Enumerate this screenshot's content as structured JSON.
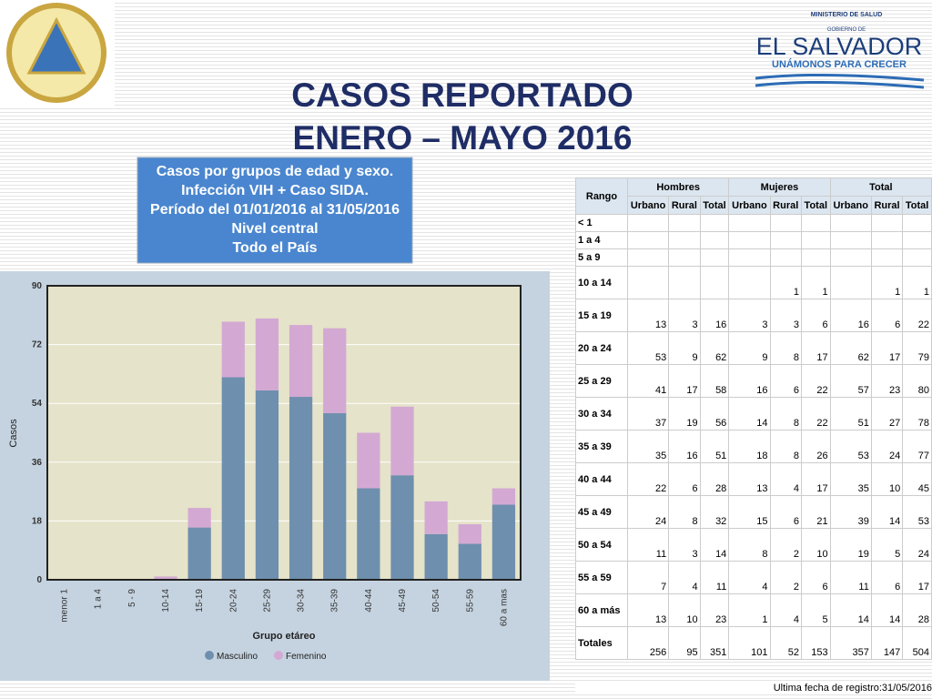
{
  "header": {
    "title_lines": [
      "CASOS REPORTADO",
      "ENERO – MAYO 2016"
    ],
    "logo_lines": [
      "MINISTERIO DE SALUD",
      "GOBIERNO DE",
      "EL SALVADOR",
      "UNÁMONOS PARA CRECER"
    ]
  },
  "info_box": {
    "lines": [
      "Casos por grupos de edad y sexo.",
      "Infección VIH + Caso SIDA.",
      "Período del 01/01/2016 al 31/05/2016",
      "Nivel central",
      "Todo el País"
    ]
  },
  "chart_data": {
    "type": "stacked_bar",
    "x_label": "Grupo etáreo",
    "y_label": "Casos",
    "categories": [
      "menor 1",
      "1 a 4",
      "5 - 9",
      "10-14",
      "15-19",
      "20-24",
      "25-29",
      "30-34",
      "35-39",
      "40-44",
      "45-49",
      "50-54",
      "55-59",
      "60 a mas"
    ],
    "series": [
      {
        "name": "Masculino",
        "color": "#6f8fae",
        "values": [
          0,
          0,
          0,
          0,
          16,
          62,
          58,
          56,
          51,
          28,
          32,
          14,
          11,
          23
        ]
      },
      {
        "name": "Femenino",
        "color": "#d3a9d3",
        "values": [
          0,
          0,
          0,
          1,
          6,
          17,
          22,
          22,
          26,
          17,
          21,
          10,
          6,
          5
        ]
      }
    ],
    "ylim": [
      0,
      90
    ],
    "yticks": [
      0,
      18,
      36,
      54,
      72,
      90
    ],
    "grid": true,
    "legend": "bottom"
  },
  "table": {
    "rango": "Rango",
    "groups": [
      "Hombres",
      "Mujeres",
      "Total"
    ],
    "subcolumns": [
      "Urbano",
      "Rural",
      "Total",
      "Urbano",
      "Rural",
      "Total",
      "Urbano",
      "Rural",
      "Total"
    ],
    "rows": [
      [
        "< 1",
        null,
        null,
        null,
        null,
        null,
        null,
        null,
        null,
        null
      ],
      [
        "1 a 4",
        null,
        null,
        null,
        null,
        null,
        null,
        null,
        null,
        null
      ],
      [
        "5 a 9",
        null,
        null,
        null,
        null,
        null,
        null,
        null,
        null,
        null
      ],
      [
        "10 a 14",
        null,
        null,
        null,
        null,
        1,
        1,
        null,
        1,
        1
      ],
      [
        "15 a 19",
        13,
        3,
        16,
        3,
        3,
        6,
        16,
        6,
        22
      ],
      [
        "20 a 24",
        53,
        9,
        62,
        9,
        8,
        17,
        62,
        17,
        79
      ],
      [
        "25 a 29",
        41,
        17,
        58,
        16,
        6,
        22,
        57,
        23,
        80
      ],
      [
        "30 a 34",
        37,
        19,
        56,
        14,
        8,
        22,
        51,
        27,
        78
      ],
      [
        "35 a 39",
        35,
        16,
        51,
        18,
        8,
        26,
        53,
        24,
        77
      ],
      [
        "40 a 44",
        22,
        6,
        28,
        13,
        4,
        17,
        35,
        10,
        45
      ],
      [
        "45 a 49",
        24,
        8,
        32,
        15,
        6,
        21,
        39,
        14,
        53
      ],
      [
        "50 a 54",
        11,
        3,
        14,
        8,
        2,
        10,
        19,
        5,
        24
      ],
      [
        "55 a 59",
        7,
        4,
        11,
        4,
        2,
        6,
        11,
        6,
        17
      ],
      [
        "60 a más",
        13,
        10,
        23,
        1,
        4,
        5,
        14,
        14,
        28
      ],
      [
        "Totales",
        256,
        95,
        351,
        101,
        52,
        153,
        357,
        147,
        504
      ]
    ],
    "footer": "Ultima fecha de registro:31/05/2016"
  }
}
